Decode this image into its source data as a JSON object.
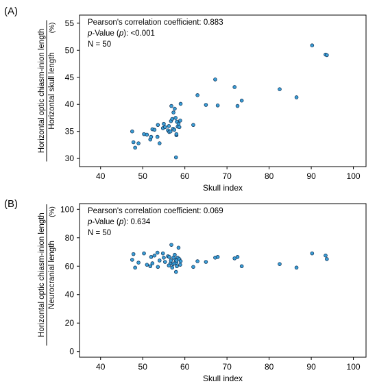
{
  "chart_data": [
    {
      "type": "scatter",
      "panel_label": "(A)",
      "xlabel": "Skull index",
      "ylabel_numerator": "Horizontal optic chiasm-inion length",
      "ylabel_denominator": "Horizontal skull length",
      "ylabel_unit": "(%)",
      "xlim": [
        35,
        103
      ],
      "ylim": [
        28.5,
        56.5
      ],
      "xticks": [
        40,
        50,
        60,
        70,
        80,
        90,
        100
      ],
      "yticks": [
        30,
        35,
        40,
        45,
        50,
        55
      ],
      "grid": false,
      "marker_color": "#3a9fd8",
      "marker_edge": "#14365a",
      "stats": {
        "pearson_label": "Pearson's correlation coefficient: 0.883",
        "p_italic": "p",
        "p_mid": "-Value (",
        "p_italic2": "p",
        "p_tail": "): <0.001",
        "n_label": "N = 50"
      },
      "x": [
        47.5,
        47.8,
        48.2,
        49.0,
        50.3,
        51.0,
        51.8,
        52.0,
        52.3,
        52.8,
        53.5,
        53.6,
        54.0,
        54.8,
        55.3,
        56.0,
        56.3,
        56.6,
        56.7,
        56.8,
        57.0,
        57.2,
        57.3,
        57.5,
        57.6,
        57.8,
        57.9,
        58.0,
        58.1,
        58.3,
        58.5,
        58.7,
        58.9,
        59.0,
        62.0,
        63.0,
        65.0,
        67.2,
        67.8,
        71.8,
        72.5,
        73.5,
        82.5,
        86.5,
        90.2,
        93.4,
        93.7,
        58.0,
        56.2,
        55.0
      ],
      "y": [
        35.0,
        33.0,
        32.0,
        32.8,
        34.5,
        34.4,
        33.5,
        34.0,
        35.4,
        35.3,
        34.0,
        36.2,
        32.8,
        35.6,
        35.8,
        35.2,
        34.9,
        35.0,
        36.9,
        39.7,
        37.3,
        35.5,
        38.5,
        35.3,
        39.2,
        37.5,
        30.2,
        34.3,
        36.8,
        35.9,
        36.4,
        35.8,
        37.0,
        40.1,
        36.2,
        41.7,
        39.9,
        44.6,
        39.8,
        43.2,
        39.7,
        40.7,
        42.8,
        41.3,
        50.9,
        49.2,
        49.1,
        34.5,
        36.0,
        36.4
      ]
    },
    {
      "type": "scatter",
      "panel_label": "(B)",
      "xlabel": "Skull index",
      "ylabel_numerator": "Horizontal optic chiasm-inion length",
      "ylabel_denominator": "Neurocranial length",
      "ylabel_unit": "(%)",
      "xlim": [
        35,
        103
      ],
      "ylim": [
        -4,
        104
      ],
      "xticks": [
        40,
        50,
        60,
        70,
        80,
        90,
        100
      ],
      "yticks": [
        0,
        20,
        40,
        60,
        80,
        100
      ],
      "grid": false,
      "marker_color": "#3a9fd8",
      "marker_edge": "#14365a",
      "stats": {
        "pearson_label": "Pearson's correlation coefficient: 0.069",
        "p_italic": "p",
        "p_mid": "-Value (",
        "p_italic2": "p",
        "p_tail": "): 0.634",
        "n_label": "N = 50"
      },
      "x": [
        47.5,
        47.8,
        48.2,
        49.0,
        50.3,
        51.0,
        51.8,
        52.0,
        52.3,
        52.8,
        53.5,
        53.6,
        54.0,
        54.8,
        55.3,
        56.0,
        56.3,
        56.6,
        56.7,
        56.8,
        57.0,
        57.2,
        57.3,
        57.5,
        57.6,
        57.8,
        57.9,
        58.0,
        58.1,
        58.3,
        58.5,
        58.7,
        58.9,
        59.0,
        62.0,
        63.0,
        65.0,
        67.2,
        67.8,
        71.8,
        72.5,
        73.5,
        82.5,
        86.5,
        90.2,
        93.4,
        93.7,
        58.0,
        56.2,
        55.0
      ],
      "y": [
        64.5,
        68.5,
        59.0,
        62.5,
        69.0,
        61.0,
        60.0,
        66.5,
        62.0,
        67.5,
        69.5,
        59.5,
        64.0,
        69.0,
        63.0,
        67.0,
        66.5,
        62.0,
        64.0,
        75.0,
        59.0,
        61.5,
        66.0,
        62.0,
        68.0,
        64.5,
        56.0,
        62.5,
        60.0,
        66.0,
        73.0,
        65.0,
        61.0,
        63.5,
        59.5,
        63.5,
        63.0,
        66.0,
        66.5,
        65.5,
        66.5,
        60.0,
        61.5,
        59.0,
        69.0,
        67.5,
        65.0,
        64.0,
        60.5,
        66.0
      ]
    }
  ]
}
